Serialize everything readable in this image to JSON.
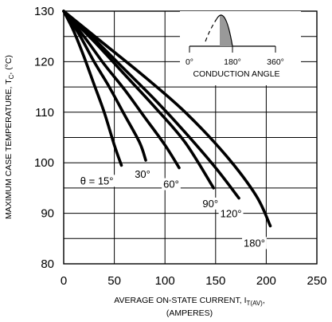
{
  "chart_data": {
    "type": "line",
    "xlabel": "AVERAGE ON-STATE  CURRENT, I",
    "xlabel_subscript": "T(AV)",
    "xlabel_suffix": ",",
    "xlabel_line2": "(AMPERES)",
    "ylabel_main": "MAXIMUM CASE TEMPERATURE, T",
    "ylabel_subscript": "C",
    "ylabel_unit": ", (°C)",
    "xlim": [
      0,
      250
    ],
    "ylim": [
      80,
      130
    ],
    "x_ticks": [
      "0",
      "50",
      "100",
      "150",
      "200",
      "250"
    ],
    "y_ticks": [
      "80",
      "90",
      "100",
      "110",
      "120",
      "130"
    ],
    "x_tick_values": [
      0,
      50,
      100,
      150,
      200,
      250
    ],
    "y_tick_values": [
      80,
      90,
      100,
      110,
      120,
      130
    ],
    "grid": true,
    "series": [
      {
        "name": "θ = 15°",
        "x": [
          0,
          10,
          20,
          30,
          40,
          50,
          57
        ],
        "y": [
          130,
          126,
          121,
          115.5,
          110,
          103.5,
          99.5
        ]
      },
      {
        "name": "30°",
        "x": [
          0,
          15,
          30,
          45,
          60,
          75,
          81
        ],
        "y": [
          130,
          125.5,
          120,
          115,
          109.5,
          104,
          100.5
        ]
      },
      {
        "name": "60°",
        "x": [
          0,
          20,
          40,
          60,
          80,
          100,
          114
        ],
        "y": [
          130,
          125,
          119.5,
          114.5,
          109,
          103.5,
          99
        ]
      },
      {
        "name": "90°",
        "x": [
          0,
          30,
          60,
          90,
          120,
          148
        ],
        "y": [
          130,
          124,
          117.5,
          111,
          104,
          95
        ]
      },
      {
        "name": "120°",
        "x": [
          0,
          30,
          60,
          90,
          120,
          150,
          173
        ],
        "y": [
          130,
          124.5,
          118.5,
          112.5,
          106,
          99,
          93
        ]
      },
      {
        "name": "180°",
        "x": [
          0,
          40,
          80,
          120,
          160,
          190,
          204
        ],
        "y": [
          130,
          123.5,
          117,
          110,
          101.5,
          93.5,
          87.5
        ]
      }
    ],
    "inset": {
      "ticks": [
        "0°",
        "180°",
        "360°"
      ],
      "label": "CONDUCTION ANGLE"
    }
  }
}
